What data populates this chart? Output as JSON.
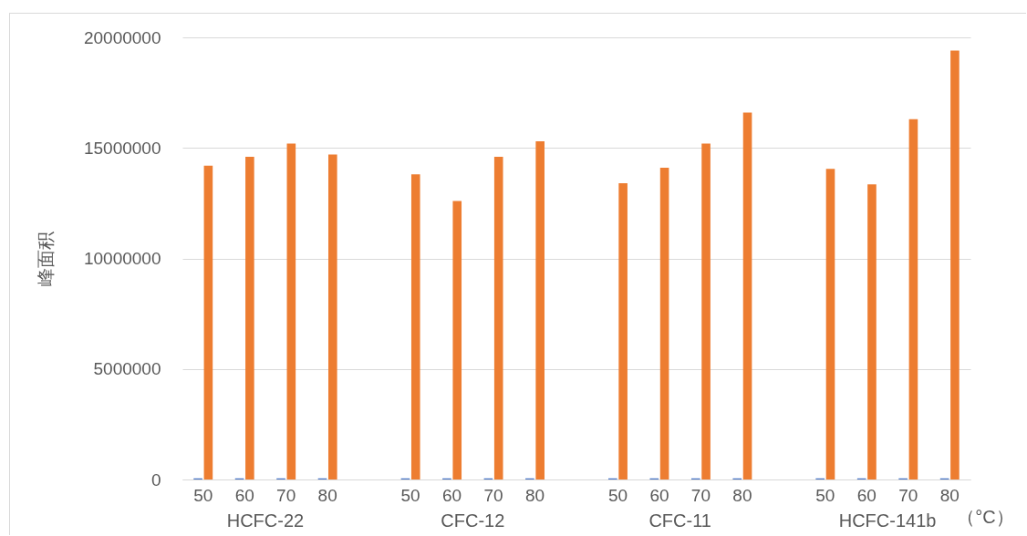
{
  "chart_data": {
    "type": "bar",
    "ylabel": "峰面积",
    "xlabel": "（°C）",
    "categories": [
      "50",
      "60",
      "70",
      "80",
      null,
      "50",
      "60",
      "70",
      "80",
      null,
      "50",
      "60",
      "70",
      "80",
      null,
      "50",
      "60",
      "70",
      "80"
    ],
    "series": [
      {
        "color": "#4472c4",
        "values": [
          50000,
          50000,
          50000,
          50000,
          null,
          50000,
          50000,
          50000,
          50000,
          null,
          50000,
          50000,
          50000,
          50000,
          null,
          50000,
          50000,
          50000,
          50000
        ]
      },
      {
        "color": "#ed7d31",
        "values": [
          14200000,
          14600000,
          15200000,
          14700000,
          null,
          13800000,
          12600000,
          14600000,
          15300000,
          null,
          13400000,
          14100000,
          15200000,
          16600000,
          null,
          14050000,
          13350000,
          16300000,
          19400000
        ]
      }
    ],
    "ylim": [
      0,
      20000000
    ],
    "yticks": [
      0,
      5000000,
      10000000,
      15000000,
      20000000
    ],
    "grid": "y",
    "annotations": [
      "HCFC-22",
      "CFC-12",
      "CFC-11",
      "HCFC-141b"
    ]
  }
}
